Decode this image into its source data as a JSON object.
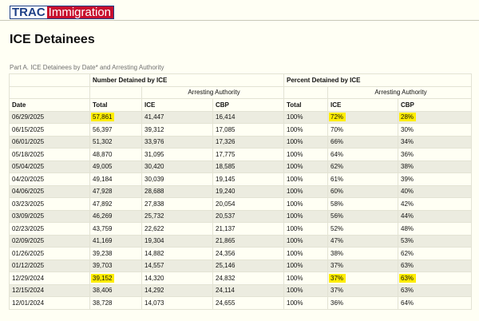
{
  "header": {
    "logo_trac": "TRAC",
    "logo_immigration": "Immigration"
  },
  "page_title": "ICE Detainees",
  "table_caption": "Part A. ICE Detainees by Date* and Arresting Authority",
  "table": {
    "group_number": "Number Detained by ICE",
    "group_percent": "Percent Detained by ICE",
    "subgroup": "Arresting Authority",
    "columns": [
      "Date",
      "Total",
      "ICE",
      "CBP",
      "Total",
      "ICE",
      "CBP"
    ],
    "rows": [
      [
        "06/29/2025",
        "57,861",
        "41,447",
        "16,414",
        "100%",
        "72%",
        "28%"
      ],
      [
        "06/15/2025",
        "56,397",
        "39,312",
        "17,085",
        "100%",
        "70%",
        "30%"
      ],
      [
        "06/01/2025",
        "51,302",
        "33,976",
        "17,326",
        "100%",
        "66%",
        "34%"
      ],
      [
        "05/18/2025",
        "48,870",
        "31,095",
        "17,775",
        "100%",
        "64%",
        "36%"
      ],
      [
        "05/04/2025",
        "49,005",
        "30,420",
        "18,585",
        "100%",
        "62%",
        "38%"
      ],
      [
        "04/20/2025",
        "49,184",
        "30,039",
        "19,145",
        "100%",
        "61%",
        "39%"
      ],
      [
        "04/06/2025",
        "47,928",
        "28,688",
        "19,240",
        "100%",
        "60%",
        "40%"
      ],
      [
        "03/23/2025",
        "47,892",
        "27,838",
        "20,054",
        "100%",
        "58%",
        "42%"
      ],
      [
        "03/09/2025",
        "46,269",
        "25,732",
        "20,537",
        "100%",
        "56%",
        "44%"
      ],
      [
        "02/23/2025",
        "43,759",
        "22,622",
        "21,137",
        "100%",
        "52%",
        "48%"
      ],
      [
        "02/09/2025",
        "41,169",
        "19,304",
        "21,865",
        "100%",
        "47%",
        "53%"
      ],
      [
        "01/26/2025",
        "39,238",
        "14,882",
        "24,356",
        "100%",
        "38%",
        "62%"
      ],
      [
        "01/12/2025",
        "39,703",
        "14,557",
        "25,146",
        "100%",
        "37%",
        "63%"
      ],
      [
        "12/29/2024",
        "39,152",
        "14,320",
        "24,832",
        "100%",
        "37%",
        "63%"
      ],
      [
        "12/15/2024",
        "38,406",
        "14,292",
        "24,114",
        "100%",
        "37%",
        "63%"
      ],
      [
        "12/01/2024",
        "38,728",
        "14,073",
        "24,655",
        "100%",
        "36%",
        "64%"
      ]
    ],
    "highlight_color": "#ffed00",
    "highlighted_cells": [
      [
        0,
        1
      ],
      [
        0,
        5
      ],
      [
        0,
        6
      ],
      [
        13,
        1
      ],
      [
        13,
        5
      ],
      [
        13,
        6
      ]
    ]
  }
}
